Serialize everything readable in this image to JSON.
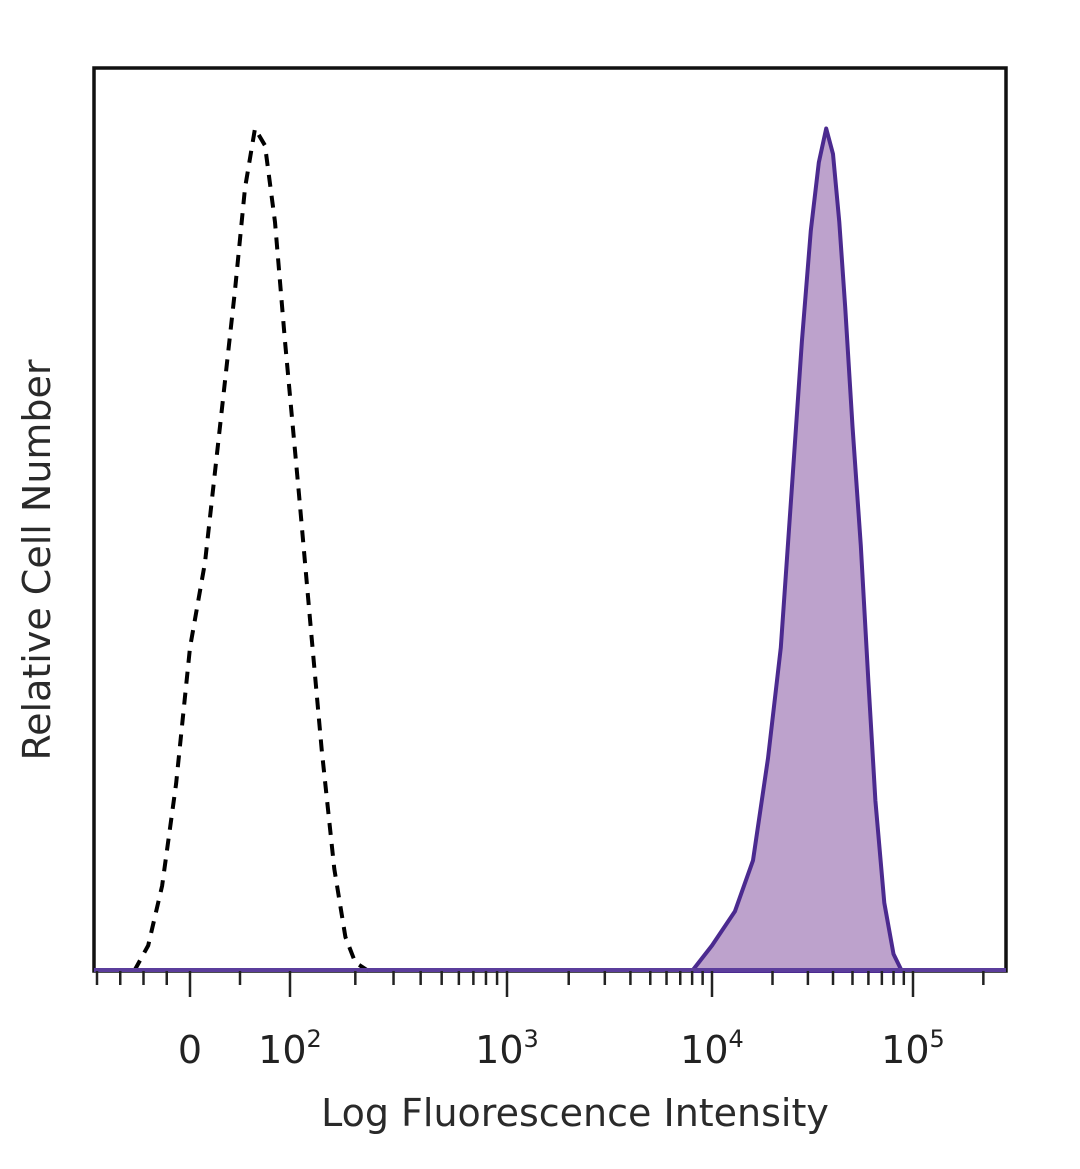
{
  "chart_data": {
    "type": "area",
    "xlabel": "Log Fluorescence Intensity",
    "ylabel": "Relative Cell Number",
    "xscale": "biexponential (logicle)",
    "xticks": [
      {
        "value": 0,
        "base": "0",
        "exp": ""
      },
      {
        "value": 100,
        "base": "10",
        "exp": "2"
      },
      {
        "value": 1000,
        "base": "10",
        "exp": "3"
      },
      {
        "value": 10000,
        "base": "10",
        "exp": "4"
      },
      {
        "value": 100000,
        "base": "10",
        "exp": "5"
      }
    ],
    "xlim": [
      -200,
      250000
    ],
    "ylim": [
      0,
      100
    ],
    "grid": false,
    "legend": "none",
    "series": [
      {
        "style": "dashed-unfilled",
        "color": "#000000",
        "points": [
          [
            -120,
            0
          ],
          [
            -90,
            3
          ],
          [
            -60,
            10
          ],
          [
            -30,
            22
          ],
          [
            0,
            38
          ],
          [
            15,
            48
          ],
          [
            30,
            64
          ],
          [
            45,
            80
          ],
          [
            55,
            92
          ],
          [
            65,
            99
          ],
          [
            75,
            97
          ],
          [
            85,
            88
          ],
          [
            95,
            74
          ],
          [
            110,
            56
          ],
          [
            125,
            40
          ],
          [
            140,
            26
          ],
          [
            160,
            12
          ],
          [
            180,
            4
          ],
          [
            200,
            1
          ],
          [
            230,
            0
          ]
        ]
      },
      {
        "style": "filled",
        "color": "#4b2a8f",
        "fill": "#bda2cc",
        "points": [
          [
            8000,
            0
          ],
          [
            10000,
            3
          ],
          [
            13000,
            7
          ],
          [
            16000,
            13
          ],
          [
            19000,
            25
          ],
          [
            22000,
            38
          ],
          [
            25000,
            57
          ],
          [
            28000,
            74
          ],
          [
            31000,
            87
          ],
          [
            34000,
            95
          ],
          [
            37000,
            99
          ],
          [
            40000,
            96
          ],
          [
            43000,
            88
          ],
          [
            46000,
            78
          ],
          [
            50000,
            64
          ],
          [
            55000,
            50
          ],
          [
            60000,
            34
          ],
          [
            65000,
            20
          ],
          [
            72000,
            8
          ],
          [
            80000,
            2
          ],
          [
            88000,
            0
          ]
        ]
      }
    ]
  }
}
